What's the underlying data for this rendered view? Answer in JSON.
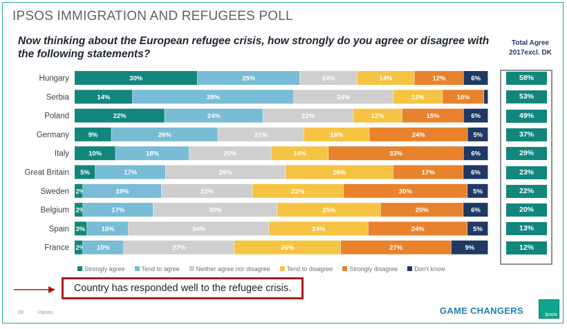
{
  "title": "IPSOS IMMIGRATION AND REFUGEES POLL",
  "question": "Now thinking about the European refugee crisis, how strongly do you agree or disagree with the following statements?",
  "total_header": "Total Agree 2017excl. DK",
  "statement": "Country has responded well to the refugee crisis.",
  "footer": {
    "page": "28",
    "copyright": "©Ipsos.",
    "brand": "GAME CHANGERS",
    "logo": "Ipsos"
  },
  "colors": {
    "strongly_agree": "#12867c",
    "tend_to_agree": "#79bcd6",
    "neither": "#cfcfcf",
    "tend_to_disagree": "#f6c443",
    "strongly_disagree": "#e8822d",
    "dont_know": "#1f3864",
    "total_box": "#12867c"
  },
  "chart_data": {
    "type": "bar",
    "orientation": "horizontal",
    "stacked": true,
    "normalized": true,
    "categories": [
      "Hungary",
      "Serbia",
      "Poland",
      "Germany",
      "Italy",
      "Great Britain",
      "Sweden",
      "Belgium",
      "Spain",
      "France"
    ],
    "series": [
      {
        "name": "Strongly agree",
        "values": [
          30,
          14,
          22,
          9,
          10,
          5,
          2,
          2,
          3,
          2
        ]
      },
      {
        "name": "Tend to agree",
        "values": [
          25,
          39,
          24,
          26,
          18,
          17,
          19,
          17,
          10,
          10
        ]
      },
      {
        "name": "Neither agree nor disagree",
        "values": [
          14,
          24,
          22,
          21,
          20,
          29,
          22,
          30,
          34,
          27
        ]
      },
      {
        "name": "Tend to disagree",
        "values": [
          14,
          12,
          12,
          16,
          14,
          26,
          22,
          25,
          24,
          26
        ]
      },
      {
        "name": "Strongly disagree",
        "values": [
          12,
          10,
          15,
          24,
          33,
          17,
          30,
          20,
          24,
          27
        ]
      },
      {
        "name": "Don't know",
        "values": [
          6,
          1,
          6,
          5,
          6,
          6,
          5,
          6,
          5,
          9
        ]
      }
    ],
    "label_hidden": [
      [
        false,
        false,
        false,
        false,
        false,
        false
      ],
      [
        false,
        false,
        false,
        false,
        false,
        true
      ],
      [
        false,
        false,
        false,
        false,
        false,
        false
      ],
      [
        false,
        false,
        false,
        false,
        false,
        false
      ],
      [
        false,
        false,
        false,
        false,
        false,
        false
      ],
      [
        false,
        false,
        false,
        false,
        false,
        false
      ],
      [
        false,
        false,
        false,
        false,
        false,
        false
      ],
      [
        false,
        false,
        false,
        false,
        false,
        false
      ],
      [
        false,
        false,
        false,
        false,
        false,
        false
      ],
      [
        false,
        false,
        false,
        false,
        false,
        false
      ]
    ],
    "total_agree": [
      58,
      53,
      49,
      37,
      29,
      23,
      22,
      20,
      13,
      12
    ],
    "legend_position": "bottom",
    "grid": false
  }
}
